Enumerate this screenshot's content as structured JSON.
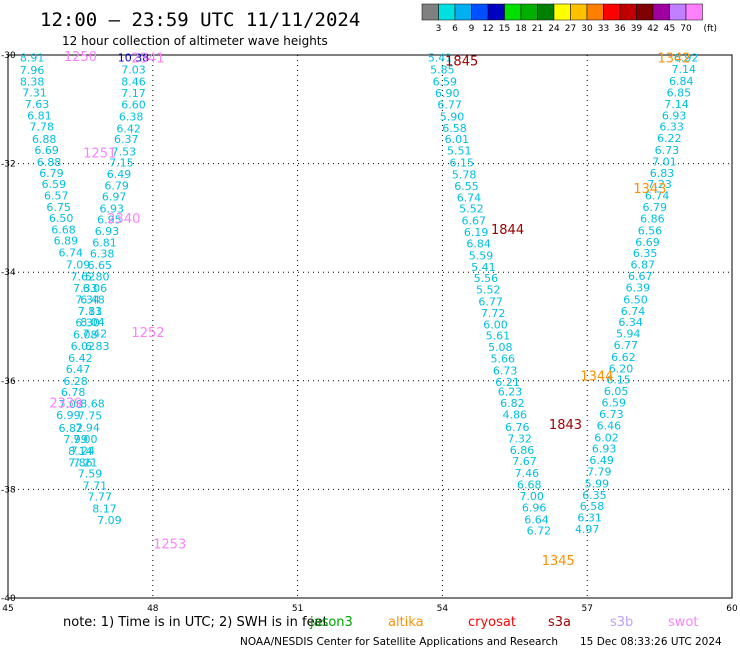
{
  "chart_data": {
    "type": "scatter",
    "title": "12:00 — 23:59 UTC 11/11/2024",
    "subtitle": "12 hour collection of altimeter wave heights",
    "xlim": [
      45,
      60
    ],
    "ylim": [
      -40,
      -30
    ],
    "x_ticks": [
      "45",
      "48",
      "51",
      "54",
      "57",
      "60"
    ],
    "y_ticks": [
      "-30",
      "-32",
      "-34",
      "-36",
      "-38",
      "-40"
    ],
    "grid": true,
    "colorbar": {
      "labels": [
        "3",
        "6",
        "9",
        "12",
        "15",
        "18",
        "21",
        "24",
        "27",
        "30",
        "33",
        "36",
        "39",
        "42",
        "45",
        "70"
      ],
      "unit": "(ft)",
      "colors": [
        "#808080",
        "#00e0e0",
        "#00b0f0",
        "#0050ff",
        "#0000c0",
        "#00e000",
        "#00b000",
        "#008000",
        "#ffff00",
        "#ffc000",
        "#ff8000",
        "#ff0000",
        "#c00000",
        "#800000",
        "#a000a0",
        "#c080ff",
        "#ff80ff"
      ]
    },
    "note": "note: 1) Time is in UTC; 2) SWH is in feet",
    "satellites": [
      {
        "name": "jason3",
        "color": "#00a000"
      },
      {
        "name": "altika",
        "color": "#ff9000"
      },
      {
        "name": "cryosat",
        "color": "#ff0000"
      },
      {
        "name": "s3a",
        "color": "#a00000"
      },
      {
        "name": "s3b",
        "color": "#c0a0ff"
      },
      {
        "name": "swot",
        "color": "#ff80ff"
      }
    ],
    "footer_left": "NOAA/NESDIS Center for Satellite Applications and Research",
    "footer_right": "15 Dec 08:33:26 UTC 2024",
    "time_labels": [
      {
        "text": "1250",
        "x": 46.5,
        "y": -30.02,
        "sat": "swot"
      },
      {
        "text": "2341",
        "x": 47.9,
        "y": -30.05,
        "sat": "swot"
      },
      {
        "text": "1251",
        "x": 46.9,
        "y": -31.8,
        "sat": "swot"
      },
      {
        "text": "2340",
        "x": 47.4,
        "y": -33.0,
        "sat": "swot"
      },
      {
        "text": "1252",
        "x": 47.9,
        "y": -35.1,
        "sat": "swot"
      },
      {
        "text": "2339",
        "x": 46.2,
        "y": -36.4,
        "sat": "swot"
      },
      {
        "text": "1253",
        "x": 48.35,
        "y": -39.0,
        "sat": "swot"
      },
      {
        "text": "1845",
        "x": 54.4,
        "y": -30.1,
        "sat": "s3a"
      },
      {
        "text": "1844",
        "x": 55.35,
        "y": -33.2,
        "sat": "s3a"
      },
      {
        "text": "1843",
        "x": 56.55,
        "y": -36.8,
        "sat": "s3a"
      },
      {
        "text": "1342",
        "x": 58.8,
        "y": -30.05,
        "sat": "altika"
      },
      {
        "text": "1343",
        "x": 58.3,
        "y": -32.45,
        "sat": "altika"
      },
      {
        "text": "1344",
        "x": 57.2,
        "y": -35.9,
        "sat": "altika"
      },
      {
        "text": "1345",
        "x": 56.4,
        "y": -39.3,
        "sat": "altika"
      }
    ],
    "series": [
      {
        "name": "swot",
        "color": "#00c0e0",
        "points": [
          [
            45.5,
            -30.05,
            "8.91"
          ],
          [
            45.5,
            -30.28,
            "7.96"
          ],
          [
            45.5,
            -30.49,
            "8.38"
          ],
          [
            45.55,
            -30.69,
            "7.31"
          ],
          [
            45.6,
            -30.9,
            "7.63"
          ],
          [
            45.65,
            -31.11,
            "6.81"
          ],
          [
            45.7,
            -31.32,
            "7.78"
          ],
          [
            45.75,
            -31.55,
            "6.88"
          ],
          [
            45.8,
            -31.75,
            "6.69"
          ],
          [
            45.85,
            -31.97,
            "6.88"
          ],
          [
            45.9,
            -32.17,
            "6.79"
          ],
          [
            45.95,
            -32.38,
            "6.59"
          ],
          [
            46.0,
            -32.59,
            "6.57"
          ],
          [
            46.05,
            -32.8,
            "6.75"
          ],
          [
            46.1,
            -33.0,
            "6.50"
          ],
          [
            46.15,
            -33.21,
            "6.68"
          ],
          [
            46.2,
            -33.42,
            "6.89"
          ],
          [
            46.3,
            -33.64,
            "6.74"
          ],
          [
            46.45,
            -33.86,
            "7.09"
          ],
          [
            46.55,
            -34.08,
            "7.62"
          ],
          [
            46.6,
            -34.29,
            "7.33"
          ],
          [
            46.65,
            -34.5,
            "7.34"
          ],
          [
            46.7,
            -34.71,
            "7.81"
          ],
          [
            46.75,
            -34.92,
            "8.04"
          ],
          [
            46.8,
            -35.13,
            "7.42"
          ],
          [
            46.85,
            -35.36,
            "6.83"
          ],
          [
            46.75,
            -36.42,
            "8.68"
          ],
          [
            46.7,
            -36.64,
            "7.75"
          ],
          [
            46.65,
            -36.86,
            "7.94"
          ],
          [
            46.6,
            -37.07,
            "7.00"
          ],
          [
            46.55,
            -37.28,
            "7.24"
          ],
          [
            46.5,
            -37.5,
            "7.86"
          ],
          [
            47.6,
            -30.05,
            "10.38"
          ],
          [
            47.6,
            -30.27,
            "7.03"
          ],
          [
            47.6,
            -30.49,
            "8.46"
          ],
          [
            47.6,
            -30.7,
            "7.17"
          ],
          [
            47.6,
            -30.91,
            "6.60"
          ],
          [
            47.55,
            -31.13,
            "6.38"
          ],
          [
            47.5,
            -31.35,
            "6.42"
          ],
          [
            47.45,
            -31.55,
            "6.37"
          ],
          [
            47.4,
            -31.78,
            "7.53"
          ],
          [
            47.35,
            -31.98,
            "7.15"
          ],
          [
            47.3,
            -32.19,
            "6.49"
          ],
          [
            47.25,
            -32.4,
            "6.79"
          ],
          [
            47.2,
            -32.61,
            "6.97"
          ],
          [
            47.15,
            -32.83,
            "6.93"
          ],
          [
            47.1,
            -33.03,
            "6.95"
          ],
          [
            47.05,
            -33.24,
            "6.93"
          ],
          [
            47.0,
            -33.45,
            "6.81"
          ],
          [
            46.95,
            -33.66,
            "6.38"
          ],
          [
            46.9,
            -33.87,
            "6.65"
          ],
          [
            46.85,
            -34.08,
            "5.80"
          ],
          [
            46.8,
            -34.29,
            "6.06"
          ],
          [
            46.75,
            -34.5,
            "6.48"
          ],
          [
            46.7,
            -34.71,
            "7.13"
          ],
          [
            46.65,
            -34.93,
            "6.30"
          ],
          [
            46.6,
            -35.15,
            "6.08"
          ],
          [
            46.55,
            -35.36,
            "6.02"
          ],
          [
            46.5,
            -35.58,
            "6.42"
          ],
          [
            46.45,
            -35.78,
            "6.47"
          ],
          [
            46.4,
            -36.0,
            "6.28"
          ],
          [
            46.35,
            -36.21,
            "6.78"
          ],
          [
            46.3,
            -36.43,
            "7.08"
          ],
          [
            46.25,
            -36.63,
            "6.99"
          ],
          [
            46.3,
            -36.87,
            "6.82"
          ],
          [
            46.4,
            -37.07,
            "7.99"
          ],
          [
            46.5,
            -37.29,
            "8.14"
          ],
          [
            46.6,
            -37.5,
            "7.21"
          ],
          [
            46.7,
            -37.71,
            "7.59"
          ],
          [
            46.8,
            -37.93,
            "7.71"
          ],
          [
            46.9,
            -38.13,
            "7.77"
          ],
          [
            47.0,
            -38.35,
            "8.17"
          ],
          [
            47.1,
            -38.56,
            "7.09"
          ]
        ]
      },
      {
        "name": "s3a",
        "color": "#00c0e0",
        "points": [
          [
            53.95,
            -30.05,
            "5.41"
          ],
          [
            54.0,
            -30.27,
            "5.85"
          ],
          [
            54.05,
            -30.49,
            "6.59"
          ],
          [
            54.1,
            -30.7,
            "6.90"
          ],
          [
            54.15,
            -30.91,
            "6.77"
          ],
          [
            54.2,
            -31.13,
            "5.90"
          ],
          [
            54.25,
            -31.34,
            "6.58"
          ],
          [
            54.3,
            -31.55,
            "6.01"
          ],
          [
            54.35,
            -31.76,
            "5.51"
          ],
          [
            54.4,
            -31.98,
            "6.15"
          ],
          [
            54.45,
            -32.2,
            "5.78"
          ],
          [
            54.5,
            -32.41,
            "6.55"
          ],
          [
            54.55,
            -32.62,
            "6.74"
          ],
          [
            54.6,
            -32.83,
            "5.52"
          ],
          [
            54.65,
            -33.05,
            "6.67"
          ],
          [
            54.7,
            -33.26,
            "6.19"
          ],
          [
            54.75,
            -33.47,
            "6.84"
          ],
          [
            54.8,
            -33.69,
            "5.59"
          ],
          [
            54.85,
            -33.9,
            "5.41"
          ],
          [
            54.9,
            -34.11,
            "5.56"
          ],
          [
            54.95,
            -34.32,
            "5.52"
          ],
          [
            55.0,
            -34.54,
            "6.77"
          ],
          [
            55.05,
            -34.75,
            "7.72"
          ],
          [
            55.1,
            -34.96,
            "6.00"
          ],
          [
            55.15,
            -35.17,
            "5.61"
          ],
          [
            55.2,
            -35.38,
            "5.08"
          ],
          [
            55.25,
            -35.59,
            "5.66"
          ],
          [
            55.3,
            -35.81,
            "6.73"
          ],
          [
            55.35,
            -36.02,
            "6.21"
          ],
          [
            55.4,
            -36.2,
            "6.23"
          ],
          [
            55.45,
            -36.41,
            "6.82"
          ],
          [
            55.5,
            -36.62,
            "4.86"
          ],
          [
            55.55,
            -36.85,
            "6.76"
          ],
          [
            55.6,
            -37.06,
            "7.32"
          ],
          [
            55.65,
            -37.27,
            "6.86"
          ],
          [
            55.7,
            -37.48,
            "7.67"
          ],
          [
            55.75,
            -37.7,
            "7.46"
          ],
          [
            55.8,
            -37.91,
            "6.68"
          ],
          [
            55.85,
            -38.12,
            "7.00"
          ],
          [
            55.9,
            -38.33,
            "6.96"
          ],
          [
            55.95,
            -38.55,
            "6.64"
          ],
          [
            56.0,
            -38.76,
            "6.72"
          ]
        ]
      },
      {
        "name": "altika",
        "color": "#00c0e0",
        "points": [
          [
            59.05,
            -30.05,
            "6.92"
          ],
          [
            59.0,
            -30.26,
            "7.14"
          ],
          [
            58.95,
            -30.48,
            "6.84"
          ],
          [
            58.9,
            -30.69,
            "6.85"
          ],
          [
            58.85,
            -30.9,
            "7.14"
          ],
          [
            58.8,
            -31.11,
            "6.93"
          ],
          [
            58.75,
            -31.32,
            "6.33"
          ],
          [
            58.7,
            -31.53,
            "6.22"
          ],
          [
            58.65,
            -31.75,
            "6.73"
          ],
          [
            58.6,
            -31.96,
            "7.01"
          ],
          [
            58.55,
            -32.17,
            "6.83"
          ],
          [
            58.5,
            -32.38,
            "7.23"
          ],
          [
            58.45,
            -32.59,
            "6.74"
          ],
          [
            58.4,
            -32.8,
            "6.79"
          ],
          [
            58.35,
            -33.01,
            "6.86"
          ],
          [
            58.3,
            -33.23,
            "6.56"
          ],
          [
            58.25,
            -33.44,
            "6.69"
          ],
          [
            58.2,
            -33.65,
            "6.35"
          ],
          [
            58.15,
            -33.86,
            "6.87"
          ],
          [
            58.1,
            -34.07,
            "6.67"
          ],
          [
            58.05,
            -34.28,
            "6.39"
          ],
          [
            58.0,
            -34.5,
            "6.50"
          ],
          [
            57.95,
            -34.71,
            "6.74"
          ],
          [
            57.9,
            -34.92,
            "6.34"
          ],
          [
            57.85,
            -35.13,
            "5.94"
          ],
          [
            57.8,
            -35.34,
            "6.77"
          ],
          [
            57.75,
            -35.56,
            "6.62"
          ],
          [
            57.7,
            -35.77,
            "6.20"
          ],
          [
            57.65,
            -35.98,
            "6.15"
          ],
          [
            57.6,
            -36.19,
            "6.05"
          ],
          [
            57.55,
            -36.4,
            "6.59"
          ],
          [
            57.5,
            -36.61,
            "6.73"
          ],
          [
            57.45,
            -36.82,
            "6.46"
          ],
          [
            57.4,
            -37.04,
            "6.02"
          ],
          [
            57.35,
            -37.25,
            "6.93"
          ],
          [
            57.3,
            -37.46,
            "6.49"
          ],
          [
            57.25,
            -37.67,
            "7.79"
          ],
          [
            57.2,
            -37.89,
            "5.99"
          ],
          [
            57.15,
            -38.1,
            "6.35"
          ],
          [
            57.1,
            -38.31,
            "6.58"
          ],
          [
            57.05,
            -38.52,
            "6.31"
          ],
          [
            57.0,
            -38.73,
            "4.97"
          ]
        ]
      }
    ]
  }
}
